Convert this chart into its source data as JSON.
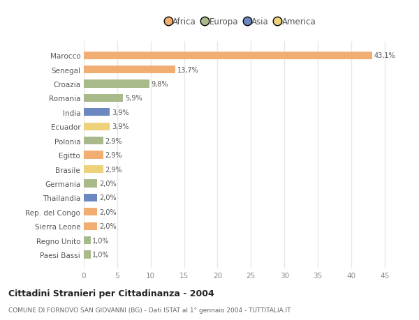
{
  "categories": [
    "Marocco",
    "Senegal",
    "Croazia",
    "Romania",
    "India",
    "Ecuador",
    "Polonia",
    "Egitto",
    "Brasile",
    "Germania",
    "Thailandia",
    "Rep. del Congo",
    "Sierra Leone",
    "Regno Unito",
    "Paesi Bassi"
  ],
  "values": [
    43.1,
    13.7,
    9.8,
    5.9,
    3.9,
    3.9,
    2.9,
    2.9,
    2.9,
    2.0,
    2.0,
    2.0,
    2.0,
    1.0,
    1.0
  ],
  "labels": [
    "43,1%",
    "13,7%",
    "9,8%",
    "5,9%",
    "3,9%",
    "3,9%",
    "2,9%",
    "2,9%",
    "2,9%",
    "2,0%",
    "2,0%",
    "2,0%",
    "2,0%",
    "1,0%",
    "1,0%"
  ],
  "colors": [
    "#F2AE72",
    "#F2AE72",
    "#A8BA8A",
    "#A8BA8A",
    "#6B88C0",
    "#EDD27A",
    "#A8BA8A",
    "#F2AE72",
    "#EDD27A",
    "#A8BA8A",
    "#6B88C0",
    "#F2AE72",
    "#F2AE72",
    "#A8BA8A",
    "#A8BA8A"
  ],
  "continent_colors": {
    "Africa": "#F2AE72",
    "Europa": "#A8BA8A",
    "Asia": "#6B88C0",
    "America": "#EDD27A"
  },
  "xlim": [
    0,
    47
  ],
  "xticks": [
    0,
    5,
    10,
    15,
    20,
    25,
    30,
    35,
    40,
    45
  ],
  "title": "Cittadini Stranieri per Cittadinanza - 2004",
  "subtitle": "COMUNE DI FORNOVO SAN GIOVANNI (BG) - Dati ISTAT al 1° gennaio 2004 - TUTTITALIA.IT",
  "background_color": "#ffffff",
  "plot_bg_color": "#ffffff",
  "grid_color": "#e8e8e8",
  "bar_height": 0.55
}
